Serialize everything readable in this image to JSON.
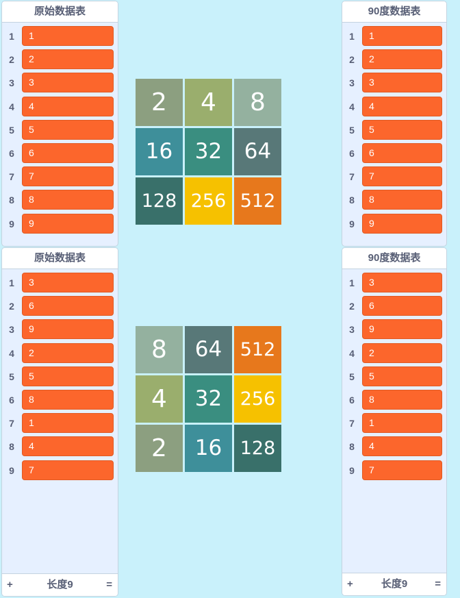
{
  "monitors": {
    "top_left": {
      "title": "原始数据表",
      "items": [
        "1",
        "2",
        "3",
        "4",
        "5",
        "6",
        "7",
        "8",
        "9"
      ]
    },
    "top_right": {
      "title": "90度数据表",
      "items": [
        "1",
        "2",
        "3",
        "4",
        "5",
        "6",
        "7",
        "8",
        "9"
      ]
    },
    "bottom_left": {
      "title": "原始数据表",
      "items": [
        "3",
        "6",
        "9",
        "2",
        "5",
        "8",
        "1",
        "4",
        "7"
      ],
      "add_label": "+",
      "length_label": "长度9",
      "resize_label": "="
    },
    "bottom_right": {
      "title": "90度数据表",
      "items": [
        "3",
        "6",
        "9",
        "2",
        "5",
        "8",
        "1",
        "4",
        "7"
      ],
      "add_label": "+",
      "length_label": "长度9",
      "resize_label": "="
    }
  },
  "grids": {
    "top": [
      [
        "2",
        "4",
        "8"
      ],
      [
        "16",
        "32",
        "64"
      ],
      [
        "128",
        "256",
        "512"
      ]
    ],
    "bottom": [
      [
        "8",
        "64",
        "512"
      ],
      [
        "4",
        "32",
        "256"
      ],
      [
        "2",
        "16",
        "128"
      ]
    ]
  },
  "tile_colors": {
    "2": "#8c9f80",
    "4": "#9aae6d",
    "8": "#94b19f",
    "16": "#3e8f9a",
    "32": "#3a8e80",
    "64": "#587878",
    "128": "#39706a",
    "256": "#f6c100",
    "512": "#e7781c"
  }
}
